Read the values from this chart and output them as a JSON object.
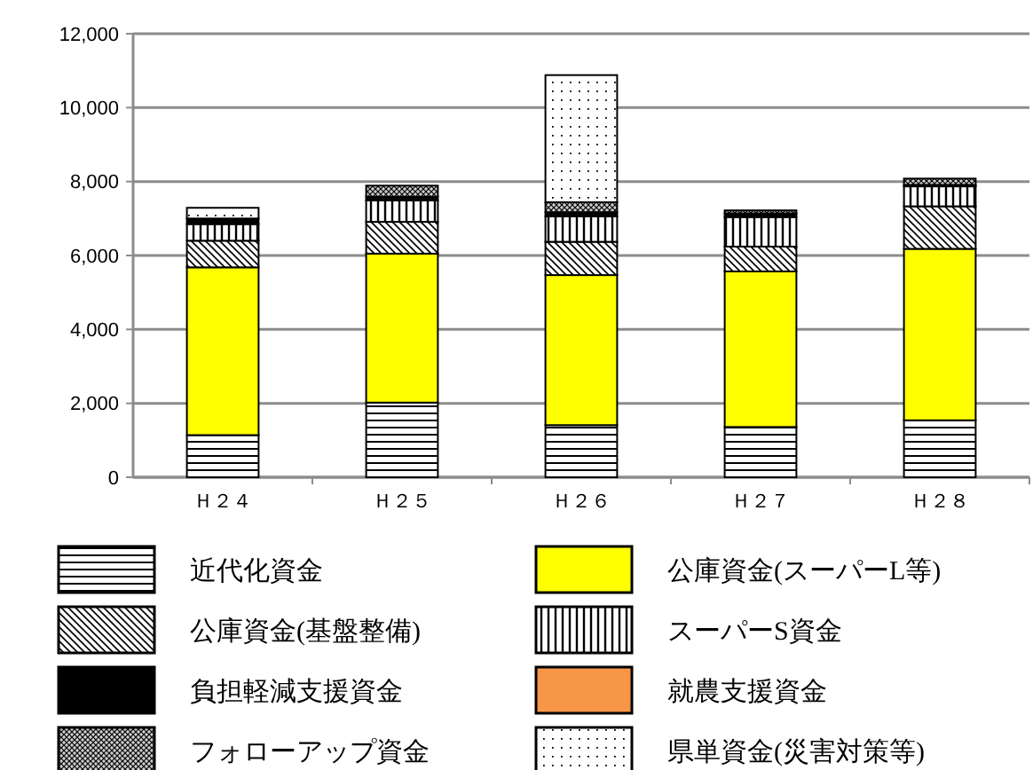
{
  "chart_data": {
    "type": "bar",
    "stacked": true,
    "categories": [
      "Ｈ２４",
      "Ｈ２５",
      "Ｈ２６",
      "Ｈ２７",
      "Ｈ２８"
    ],
    "ylim": [
      0,
      12000
    ],
    "yticks": [
      {
        "value": 0,
        "label": "0"
      },
      {
        "value": 2000,
        "label": "2,000"
      },
      {
        "value": 4000,
        "label": "4,000"
      },
      {
        "value": 6000,
        "label": "6,000"
      },
      {
        "value": 8000,
        "label": "8,000"
      },
      {
        "value": 10000,
        "label": "10,000"
      },
      {
        "value": 12000,
        "label": "12,000"
      }
    ],
    "grid": "y",
    "legend": "bottom",
    "series": [
      {
        "name": "近代化資金",
        "color": "#000000",
        "values": [
          1140,
          2020,
          1410,
          1360,
          1540
        ]
      },
      {
        "name": "公庫資金(スーパーL等)",
        "color": "#ffff00",
        "values": [
          4540,
          4030,
          4060,
          4210,
          4640
        ]
      },
      {
        "name": "公庫資金(基盤整備)",
        "color": "#000000",
        "values": [
          720,
          860,
          900,
          670,
          1150
        ]
      },
      {
        "name": "スーパーS資金",
        "color": "#000000",
        "values": [
          450,
          580,
          690,
          800,
          540
        ]
      },
      {
        "name": "負担軽減支援資金",
        "color": "#000000",
        "values": [
          150,
          100,
          110,
          100,
          40
        ]
      },
      {
        "name": "就農支援資金",
        "color": "#f79646",
        "values": [
          0,
          0,
          0,
          0,
          0
        ]
      },
      {
        "name": "フォローアップ資金",
        "color": "#000000",
        "values": [
          null,
          300,
          270,
          80,
          170
        ]
      },
      {
        "name": "県単資金(災害対策等)",
        "color": "#000000",
        "values": [
          290,
          0,
          3440,
          0,
          0
        ]
      }
    ]
  }
}
